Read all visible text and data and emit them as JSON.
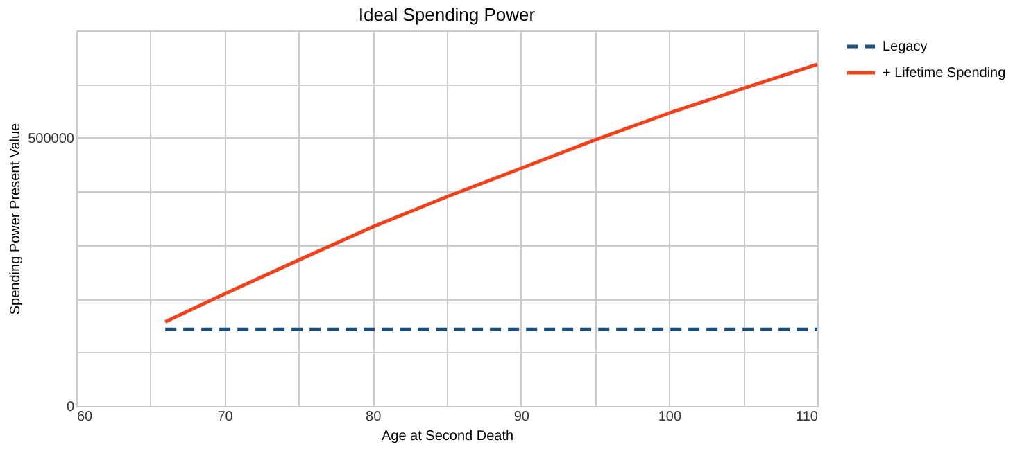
{
  "chart_data": {
    "type": "line",
    "title": "Ideal Spending Power",
    "xlabel": "Age at Second Death",
    "ylabel": "Spending Power Present Value",
    "xlim": [
      60,
      110
    ],
    "xticks": [
      60,
      {
        "value": 65,
        "label": null
      },
      70,
      {
        "value": 75,
        "label": null
      },
      80,
      {
        "value": 85,
        "label": null
      },
      90,
      {
        "value": 95,
        "label": null
      },
      100,
      {
        "value": 105,
        "label": null
      },
      110
    ],
    "ylim": [
      0,
      700000
    ],
    "yticks": [
      0,
      {
        "value": 100000,
        "label": null
      },
      {
        "value": 200000,
        "label": null
      },
      {
        "value": 300000,
        "label": null
      },
      {
        "value": 400000,
        "label": null
      },
      500000,
      {
        "value": 600000,
        "label": null
      },
      {
        "value": 700000,
        "label": null
      }
    ],
    "grid": true,
    "legend": "right",
    "marker": "none",
    "series": [
      {
        "name": "Legacy",
        "color": "#1f4e79",
        "line_style": "dashed",
        "x": [
          66,
          110
        ],
        "values": [
          143000,
          143000
        ]
      },
      {
        "name": "+ Lifetime Spending",
        "color": "#f0421c",
        "line_style": "solid",
        "x": [
          66,
          70,
          75,
          80,
          85,
          90,
          95,
          100,
          105,
          110
        ],
        "values": [
          157000,
          209000,
          272000,
          334000,
          390000,
          443000,
          496000,
          546000,
          592000,
          637000
        ]
      }
    ]
  }
}
